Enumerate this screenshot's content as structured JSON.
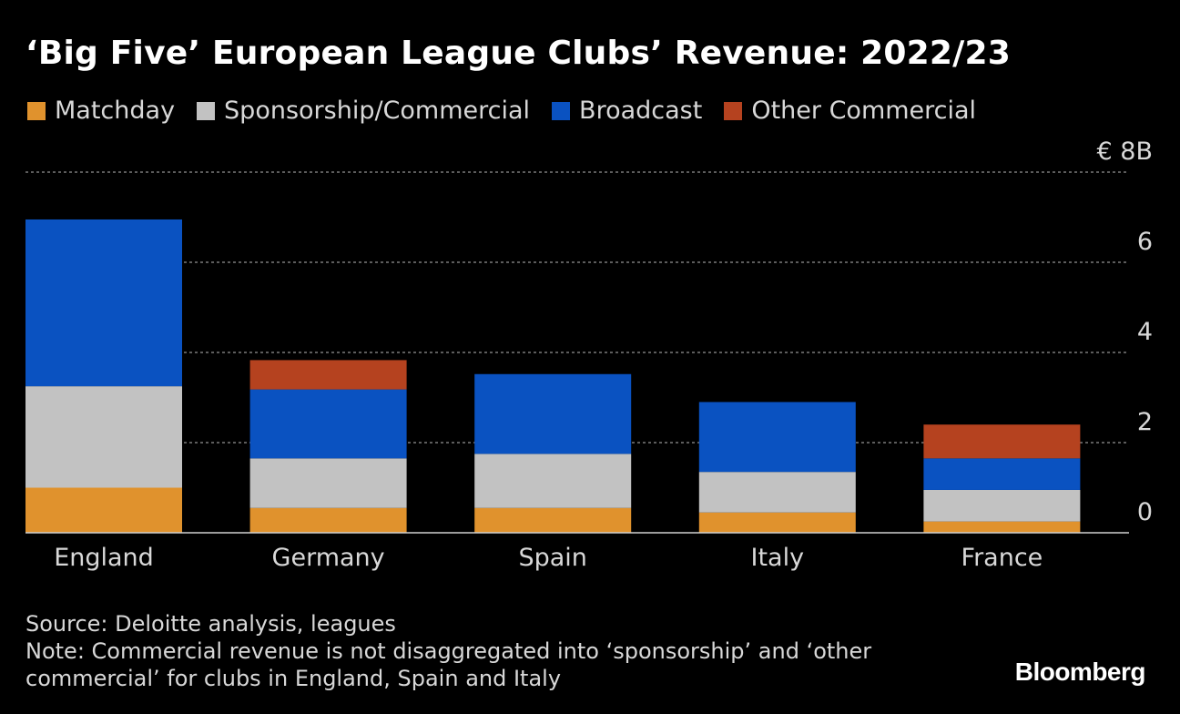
{
  "title": "‘Big Five’ European League Clubs’ Revenue: 2022/23",
  "legend": [
    {
      "label": "Matchday",
      "color": "#e0922d"
    },
    {
      "label": "Sponsorship/Commercial",
      "color": "#c2c2c2"
    },
    {
      "label": "Broadcast",
      "color": "#0a52c1"
    },
    {
      "label": "Other Commercial",
      "color": "#b5421f"
    }
  ],
  "chart_data": {
    "type": "bar",
    "stacked": true,
    "categories": [
      "England",
      "Germany",
      "Spain",
      "Italy",
      "France"
    ],
    "series": [
      {
        "name": "Matchday",
        "color": "#e0922d",
        "values": [
          1.0,
          0.55,
          0.55,
          0.45,
          0.25
        ]
      },
      {
        "name": "Sponsorship/Commercial",
        "color": "#c2c2c2",
        "values": [
          2.25,
          1.1,
          1.2,
          0.9,
          0.7
        ]
      },
      {
        "name": "Broadcast",
        "color": "#0a52c1",
        "values": [
          3.7,
          1.53,
          1.77,
          1.55,
          0.7
        ]
      },
      {
        "name": "Other Commercial",
        "color": "#b5421f",
        "values": [
          0,
          0.65,
          0,
          0,
          0.75
        ]
      }
    ],
    "ylim": [
      0,
      8
    ],
    "yticks": [
      0,
      2,
      4,
      6,
      8
    ],
    "ytick_labels": [
      "0",
      "2",
      "4",
      "6",
      "€ 8B"
    ],
    "grid": true,
    "legend_position": "top-left",
    "xlabel": "",
    "ylabel": ""
  },
  "footer": {
    "source": "Source: Deloitte analysis, leagues",
    "note_line1": "Note: Commercial revenue is not disaggregated into ‘sponsorship’ and ‘other",
    "note_line2": "commercial’ for clubs in England, Spain and Italy"
  },
  "brand": "Bloomberg"
}
